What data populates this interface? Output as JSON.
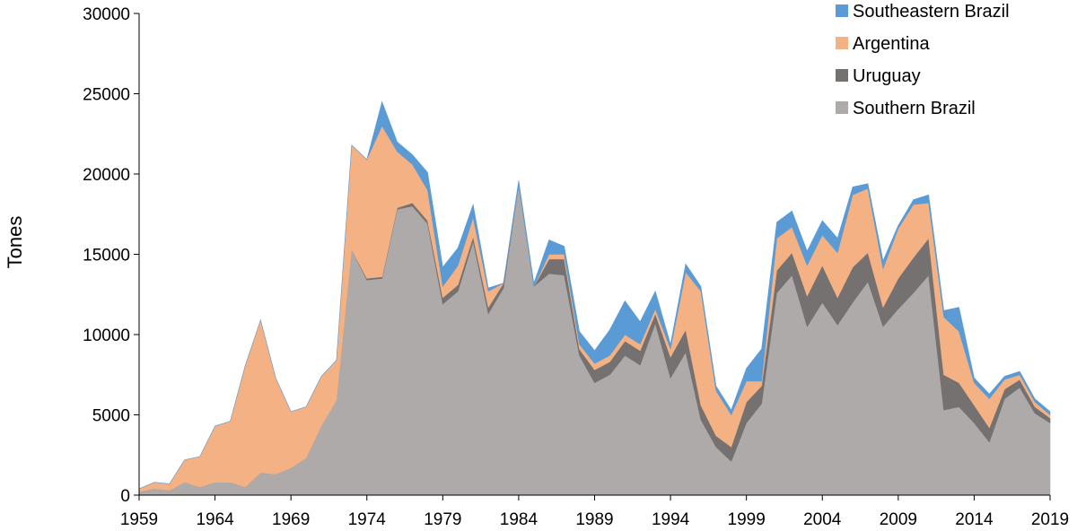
{
  "chart_data": {
    "type": "area",
    "stacked": true,
    "title": "",
    "xlabel": "",
    "ylabel": "Tones",
    "ylim": [
      0,
      30000
    ],
    "xlim": [
      1959,
      2019
    ],
    "grid": false,
    "legend_position": "top-right",
    "yticks": [
      0,
      5000,
      10000,
      15000,
      20000,
      25000,
      30000
    ],
    "xticks": [
      1959,
      1964,
      1969,
      1974,
      1979,
      1984,
      1989,
      1994,
      1999,
      2004,
      2009,
      2014,
      2019
    ],
    "x": [
      1959,
      1960,
      1961,
      1962,
      1963,
      1964,
      1965,
      1966,
      1967,
      1968,
      1969,
      1970,
      1971,
      1972,
      1973,
      1974,
      1975,
      1976,
      1977,
      1978,
      1979,
      1980,
      1981,
      1982,
      1983,
      1984,
      1985,
      1986,
      1987,
      1988,
      1989,
      1990,
      1991,
      1992,
      1993,
      1994,
      1995,
      1996,
      1997,
      1998,
      1999,
      2000,
      2001,
      2002,
      2003,
      2004,
      2005,
      2006,
      2007,
      2008,
      2009,
      2010,
      2011,
      2012,
      2013,
      2014,
      2015,
      2016,
      2017,
      2018,
      2019
    ],
    "series": [
      {
        "name": "Southern Brazil",
        "color": "#aeaaaa",
        "values": [
          200,
          400,
          300,
          800,
          500,
          800,
          800,
          500,
          1400,
          1300,
          1700,
          2300,
          4300,
          5900,
          15300,
          13400,
          13500,
          17800,
          18000,
          16900,
          11900,
          12700,
          15800,
          11300,
          12900,
          19300,
          13000,
          13800,
          13700,
          8700,
          7000,
          7500,
          8700,
          8100,
          10700,
          7300,
          8900,
          4700,
          3000,
          2100,
          4500,
          5700,
          12600,
          13700,
          10500,
          12000,
          10600,
          12000,
          13300,
          10500,
          11600,
          12600,
          13700,
          5300,
          5500,
          4500,
          3300,
          6000,
          6700,
          5100,
          4500
        ]
      },
      {
        "name": "Uruguay",
        "color": "#757171",
        "values": [
          0,
          0,
          0,
          0,
          0,
          0,
          0,
          0,
          0,
          0,
          0,
          0,
          0,
          0,
          0,
          100,
          100,
          100,
          200,
          200,
          400,
          400,
          300,
          400,
          300,
          0,
          0,
          900,
          1000,
          400,
          800,
          800,
          900,
          900,
          600,
          1300,
          1400,
          900,
          700,
          900,
          1300,
          1100,
          1400,
          1400,
          1900,
          2300,
          1700,
          2200,
          1800,
          1200,
          1900,
          2200,
          2300,
          2200,
          1500,
          1100,
          900,
          600,
          500,
          400,
          300
        ]
      },
      {
        "name": "Argentina",
        "color": "#f4b183",
        "values": [
          200,
          400,
          400,
          1400,
          1900,
          3500,
          3800,
          7600,
          9500,
          6000,
          3500,
          3200,
          3100,
          2500,
          6500,
          7400,
          9400,
          3500,
          2400,
          1900,
          700,
          1200,
          1200,
          1000,
          0,
          0,
          0,
          300,
          300,
          300,
          400,
          400,
          400,
          400,
          300,
          500,
          3600,
          7100,
          2800,
          2000,
          1300,
          300,
          2000,
          1600,
          1900,
          1900,
          2800,
          4500,
          4000,
          2400,
          3100,
          3300,
          2200,
          3600,
          3200,
          1400,
          1800,
          600,
          300,
          300,
          200
        ]
      },
      {
        "name": "Southeastern Brazil",
        "color": "#5b9bd5",
        "values": [
          0,
          0,
          0,
          0,
          0,
          0,
          0,
          0,
          0,
          0,
          0,
          0,
          0,
          0,
          0,
          0,
          1500,
          600,
          600,
          1100,
          1200,
          1100,
          800,
          200,
          0,
          300,
          200,
          900,
          500,
          800,
          800,
          1600,
          2100,
          1400,
          1100,
          300,
          500,
          300,
          300,
          300,
          800,
          2000,
          1000,
          1000,
          900,
          900,
          900,
          500,
          300,
          500,
          200,
          300,
          500,
          400,
          1500,
          300,
          300,
          200,
          200,
          200,
          200
        ]
      }
    ]
  }
}
